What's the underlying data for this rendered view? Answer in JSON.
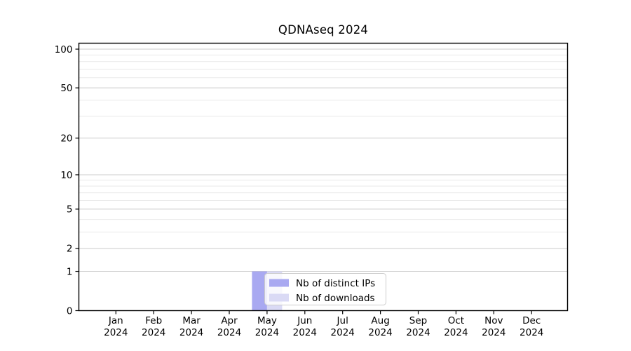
{
  "chart_data": {
    "type": "bar",
    "title": "QDNAseq 2024",
    "categories": [
      "Jan 2024",
      "Feb 2024",
      "Mar 2024",
      "Apr 2024",
      "May 2024",
      "Jun 2024",
      "Jul 2024",
      "Aug 2024",
      "Sep 2024",
      "Oct 2024",
      "Nov 2024",
      "Dec 2024"
    ],
    "series": [
      {
        "name": "Nb of distinct IPs",
        "color": "#a9a9f1",
        "values": [
          0,
          0,
          0,
          0,
          1,
          0,
          0,
          0,
          0,
          0,
          0,
          0
        ]
      },
      {
        "name": "Nb of downloads",
        "color": "#dadaf5",
        "values": [
          0,
          0,
          0,
          0,
          1,
          0,
          0,
          0,
          0,
          0,
          0,
          0
        ]
      }
    ],
    "xlabel": "",
    "ylabel": "",
    "y_scale": "log1p",
    "ylim": [
      0,
      100
    ],
    "y_ticks": [
      0,
      1,
      2,
      5,
      10,
      20,
      50,
      100
    ],
    "y_minor_ticks": [
      3,
      4,
      6,
      7,
      8,
      9,
      30,
      40,
      60,
      70,
      80,
      90
    ],
    "grid": "horizontal",
    "legend": {
      "position": "inside-bottom-center",
      "entries": [
        "Nb of distinct IPs",
        "Nb of downloads"
      ]
    }
  },
  "colors": {
    "background": "#ffffff",
    "axis": "#000000",
    "text": "#000000",
    "grid_major": "#cccccc",
    "grid_minor": "#e9e9e9",
    "legend_border": "#cccccc",
    "legend_background": "rgba(255,255,255,0.8)"
  }
}
